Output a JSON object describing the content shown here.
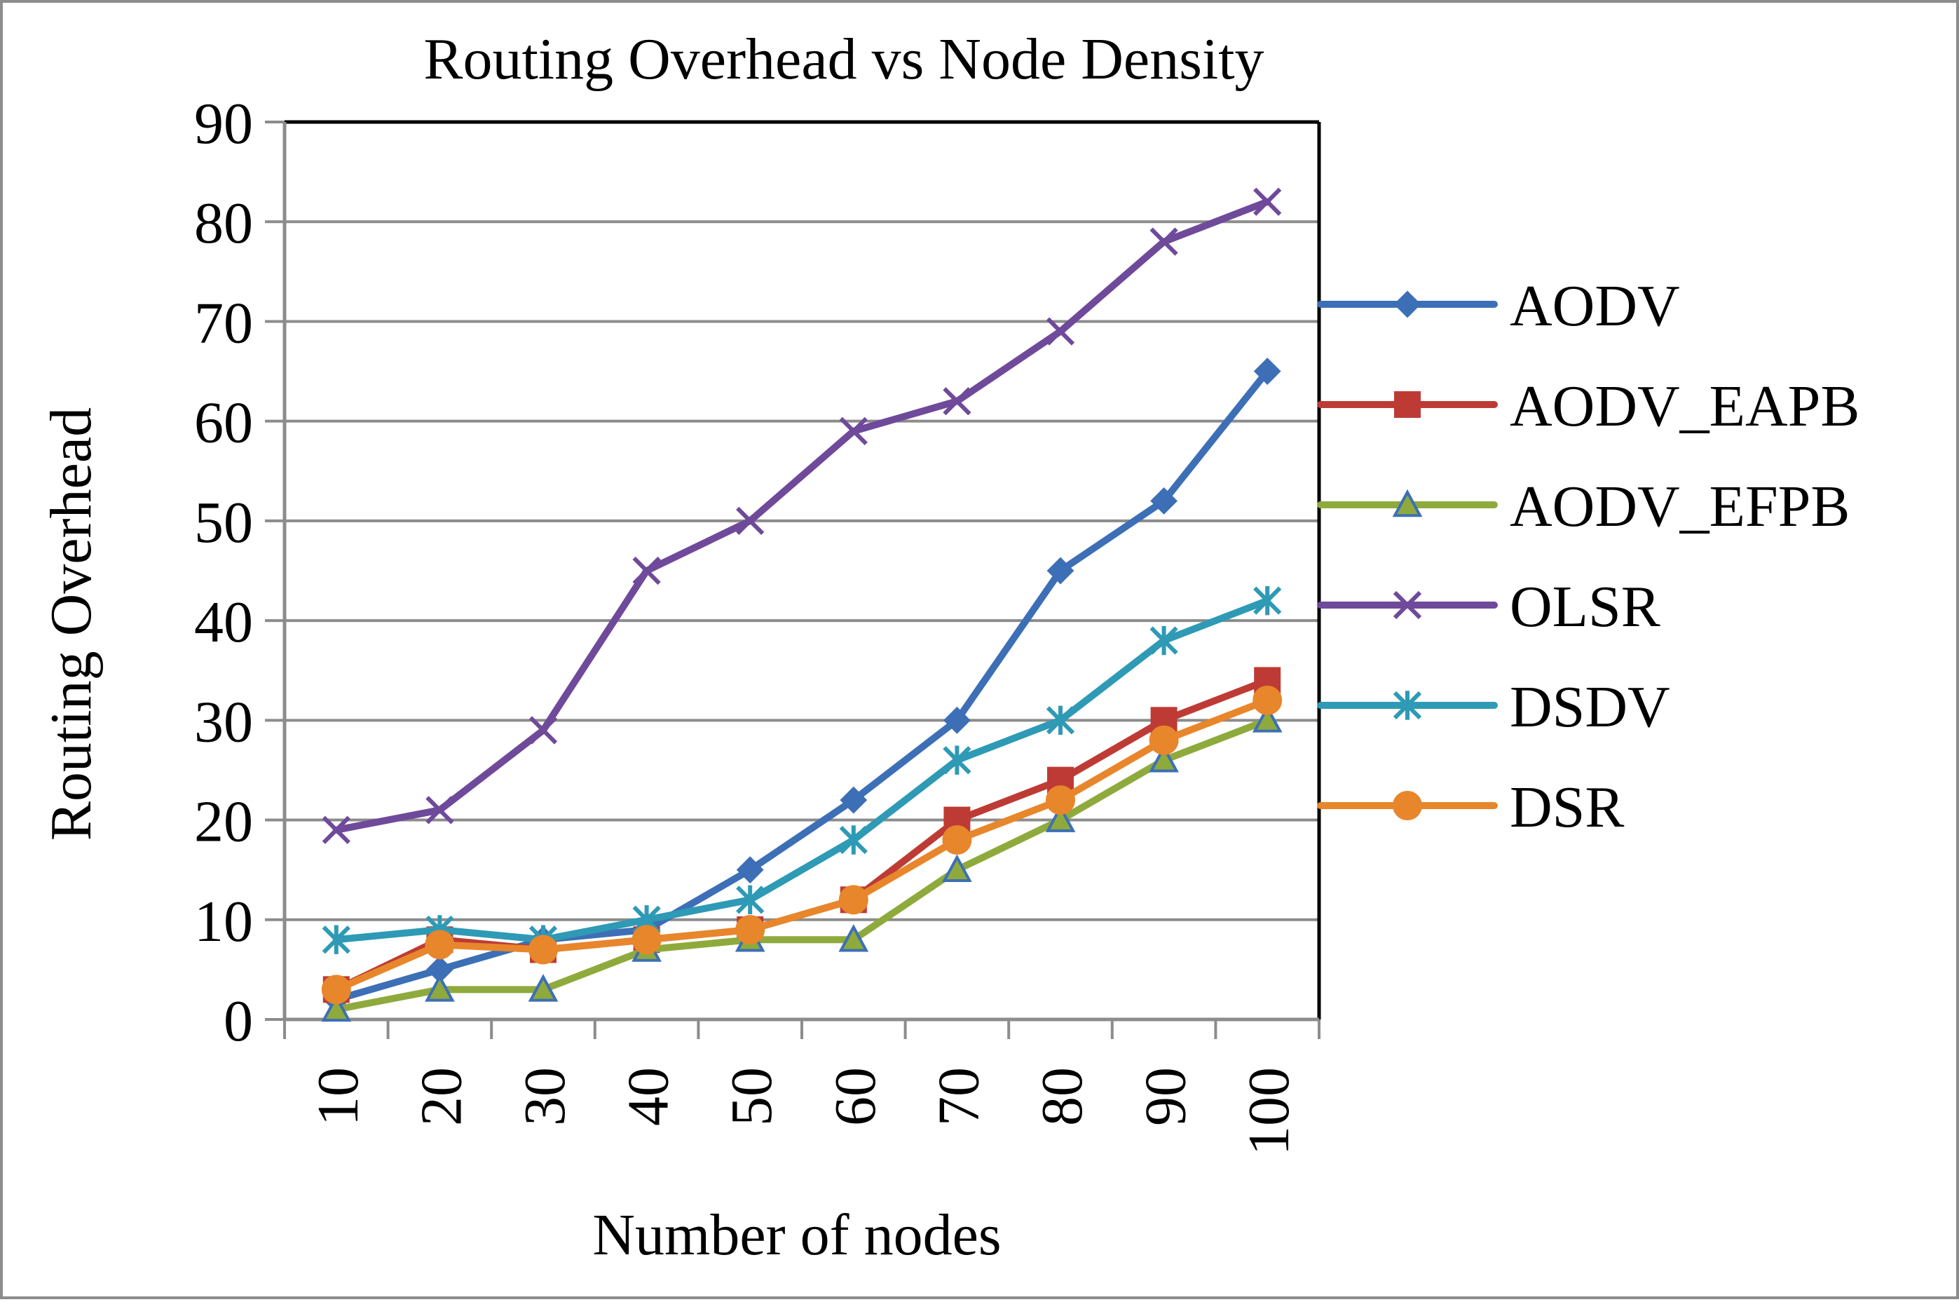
{
  "chart_data": {
    "type": "line",
    "title": "Routing Overhead vs Node Density",
    "xlabel": "Number of nodes",
    "ylabel": "Routing Overhead",
    "categories": [
      "10",
      "20",
      "30",
      "40",
      "50",
      "60",
      "70",
      "80",
      "90",
      "100"
    ],
    "ylim": [
      0,
      90
    ],
    "yticks": [
      "0",
      "10",
      "20",
      "30",
      "40",
      "50",
      "60",
      "70",
      "80",
      "90"
    ],
    "grid": true,
    "legend_position": "right",
    "series": [
      {
        "name": "AODV",
        "color": "#3d6fb6",
        "marker": "diamond",
        "values": [
          2,
          5,
          8,
          9,
          15,
          22,
          30,
          45,
          52,
          65
        ]
      },
      {
        "name": "AODV_EAPB",
        "color": "#be3b35",
        "marker": "square",
        "values": [
          3,
          8,
          7,
          8,
          9,
          12,
          20,
          24,
          30,
          34
        ]
      },
      {
        "name": "AODV_EFPB",
        "color": "#8faa3c",
        "marker": "triangle",
        "values": [
          1,
          3,
          3,
          7,
          8,
          8,
          15,
          20,
          26,
          30
        ]
      },
      {
        "name": "OLSR",
        "color": "#6f4a9a",
        "marker": "x",
        "values": [
          19,
          21,
          29,
          45,
          50,
          59,
          62,
          69,
          78,
          82
        ]
      },
      {
        "name": "DSDV",
        "color": "#2e9ab5",
        "marker": "star",
        "values": [
          8,
          9,
          8,
          10,
          12,
          18,
          26,
          30,
          38,
          42
        ]
      },
      {
        "name": "DSR",
        "color": "#e8862b",
        "marker": "circle",
        "values": [
          3,
          7.5,
          7,
          8,
          9,
          12,
          18,
          22,
          28,
          32
        ]
      }
    ]
  }
}
